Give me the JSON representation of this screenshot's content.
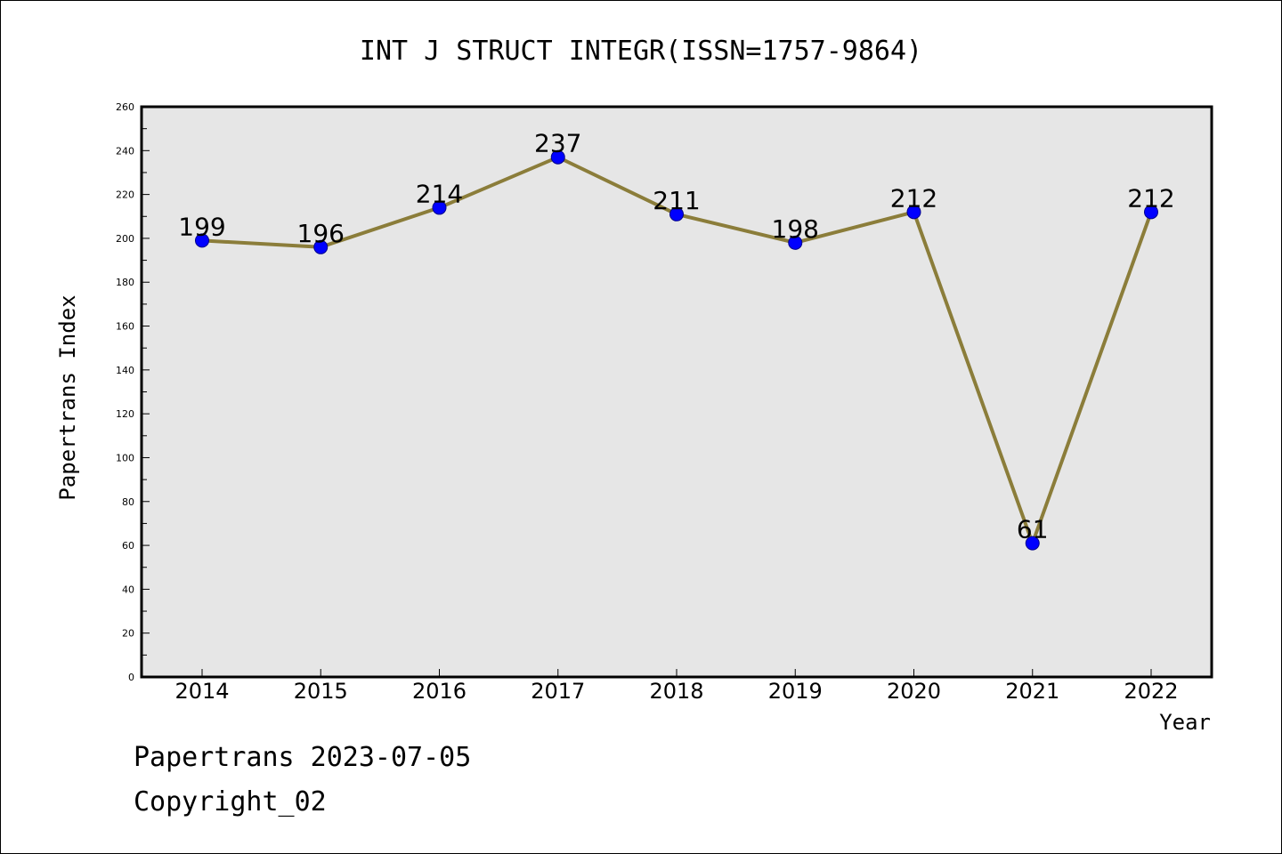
{
  "chart_data": {
    "type": "line",
    "title": "INT J STRUCT INTEGR(ISSN=1757-9864)",
    "xlabel": "Year",
    "ylabel": "Papertrans Index",
    "categories": [
      "2014",
      "2015",
      "2016",
      "2017",
      "2018",
      "2019",
      "2020",
      "2021",
      "2022"
    ],
    "series": [
      {
        "values": [
          199,
          196,
          214,
          237,
          211,
          198,
          212,
          61,
          212
        ]
      }
    ],
    "data_labels": [
      "199",
      "196",
      "214",
      "237",
      "211",
      "198",
      "212",
      "61",
      "212"
    ],
    "ylim": [
      0,
      260
    ],
    "yticks": [
      0,
      20,
      40,
      60,
      80,
      100,
      120,
      140,
      160,
      180,
      200,
      220,
      240,
      260
    ],
    "ytick_labels": [
      "0",
      "20",
      "40",
      "60",
      "80",
      "100",
      "120",
      "140",
      "160",
      "180",
      "200",
      "220",
      "240",
      "260"
    ],
    "grid": false,
    "legend": "none",
    "colors": {
      "plot_background": "#e6e6e6",
      "line": "#8b7d3a",
      "marker": "#0000ff",
      "marker_edge": "#00008b"
    }
  },
  "footer": {
    "line1": "Papertrans 2023-07-05",
    "line2": "Copyright_02"
  }
}
